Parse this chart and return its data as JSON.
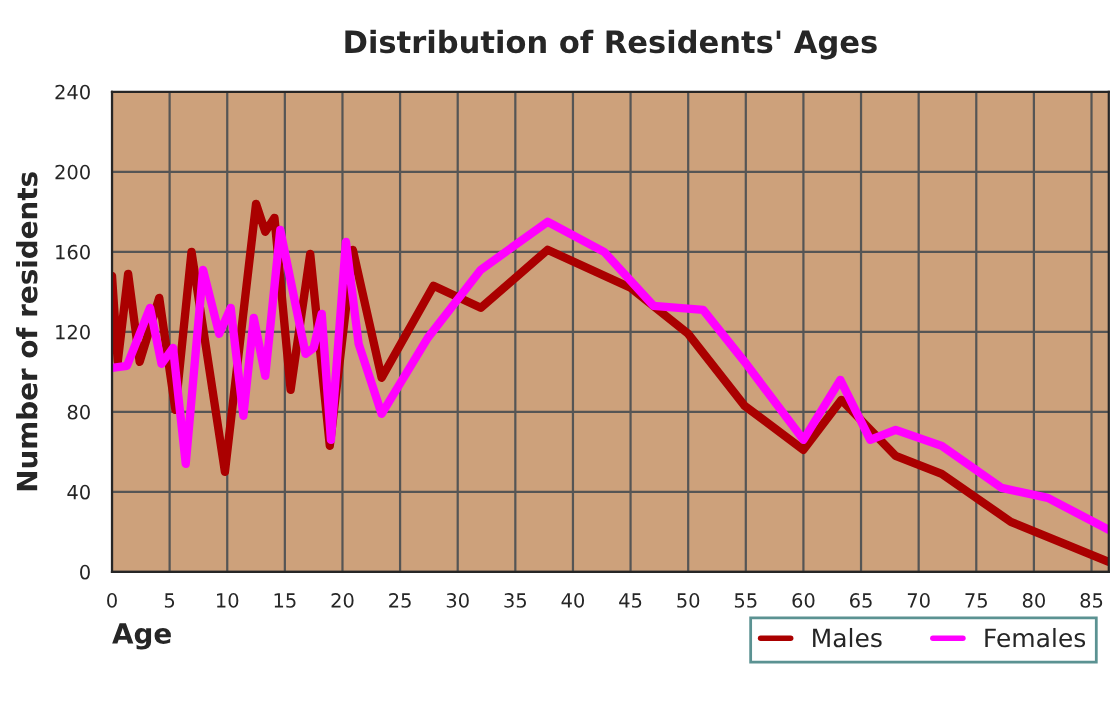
{
  "chart_data": {
    "type": "line",
    "title": "Distribution of Residents' Ages",
    "xlabel": "Age",
    "ylabel": "Number of residents",
    "xlim": [
      0,
      86.5
    ],
    "xticks": [
      0,
      5,
      10,
      15,
      20,
      25,
      30,
      35,
      40,
      45,
      50,
      55,
      60,
      65,
      70,
      75,
      80,
      85
    ],
    "ylim": [
      0,
      240
    ],
    "yticks": [
      0,
      40,
      80,
      120,
      160,
      200,
      240
    ],
    "grid": true,
    "legend": "bottom right",
    "line_style": "solid",
    "series": [
      {
        "name": "Males",
        "color": "#aa0000",
        "x": [
          0,
          0.5,
          1.4,
          2.4,
          4.1,
          5.5,
          6.9,
          9.8,
          12.5,
          13.3,
          14.1,
          15.5,
          17.2,
          18.9,
          20.9,
          23.4,
          27.9,
          32,
          37.8,
          45,
          50,
          54.9,
          60,
          63.3,
          68,
          72,
          78,
          86.5
        ],
        "values": [
          148,
          105,
          149,
          105,
          137,
          81,
          160,
          50,
          184,
          170,
          177,
          91,
          159,
          63,
          161,
          97,
          143,
          132,
          161,
          142,
          119,
          83,
          61,
          86,
          58,
          49,
          25,
          5
        ]
      },
      {
        "name": "Females",
        "color": "#ff00ff",
        "x": [
          0,
          1.3,
          3.3,
          4.3,
          5.3,
          6.4,
          7.9,
          9.3,
          10.3,
          11.4,
          12.3,
          13.3,
          14.6,
          16.8,
          17.5,
          18.2,
          19,
          20.3,
          21.4,
          23.4,
          27.4,
          32,
          37.8,
          42.7,
          47,
          51.3,
          54.9,
          60,
          63.2,
          65.8,
          68,
          72,
          77.2,
          81.2,
          86.5
        ],
        "values": [
          102,
          103,
          132,
          104,
          112,
          54,
          151,
          119,
          132,
          78,
          127,
          98,
          171,
          109,
          112,
          129,
          66,
          165,
          114,
          79,
          117,
          151,
          175,
          160,
          133,
          131,
          105,
          66,
          96,
          66,
          71,
          63,
          42,
          37,
          21
        ]
      }
    ]
  }
}
